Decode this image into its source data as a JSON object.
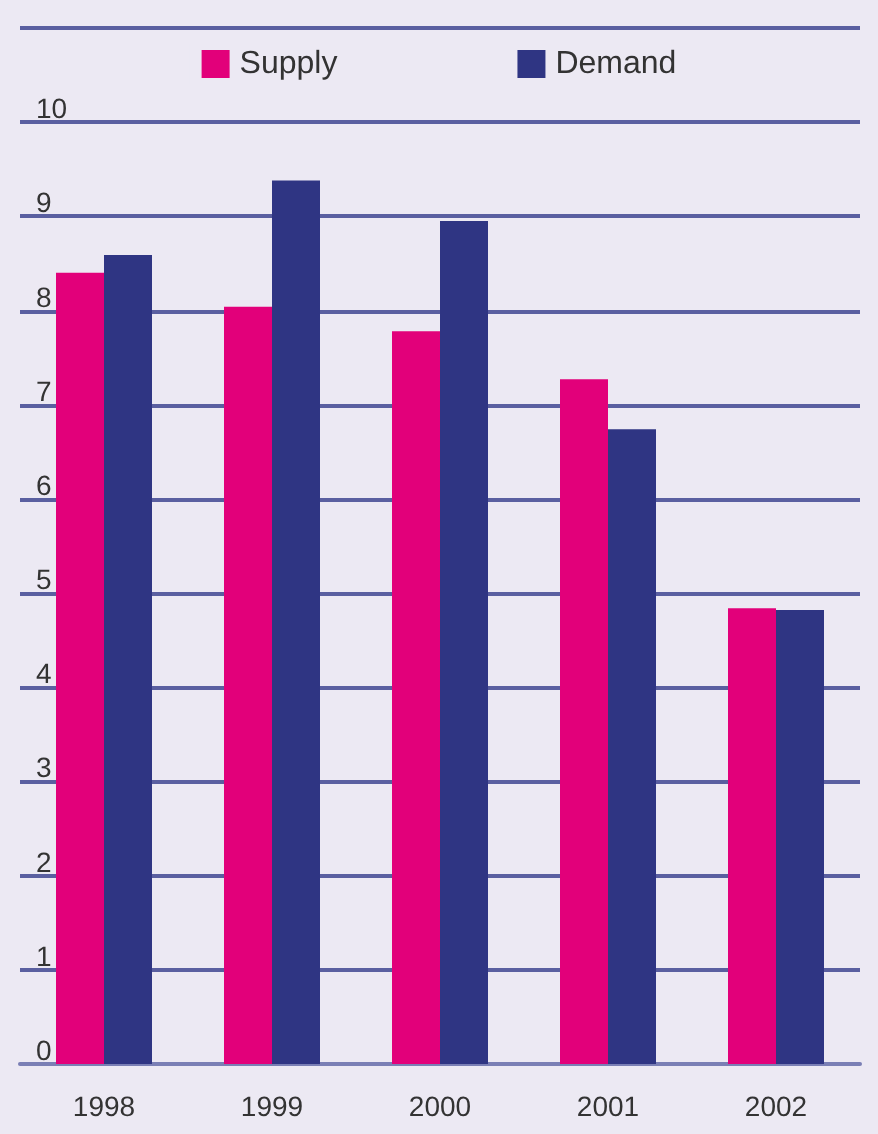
{
  "chart_data": {
    "type": "bar",
    "categories": [
      "1998",
      "1999",
      "2000",
      "2001",
      "2002"
    ],
    "series": [
      {
        "name": "Supply",
        "color": "#e2007a",
        "values": [
          8.4,
          8.04,
          7.78,
          7.27,
          4.84
        ]
      },
      {
        "name": "Demand",
        "color": "#2f3583",
        "values": [
          8.59,
          9.38,
          8.95,
          6.74,
          4.82
        ]
      }
    ],
    "ylim": [
      0,
      11
    ],
    "yticks": [
      0,
      1,
      2,
      3,
      4,
      5,
      6,
      7,
      8,
      9,
      10,
      {
        "value": 11,
        "label": null
      }
    ],
    "grid": "y",
    "legend": "top"
  }
}
